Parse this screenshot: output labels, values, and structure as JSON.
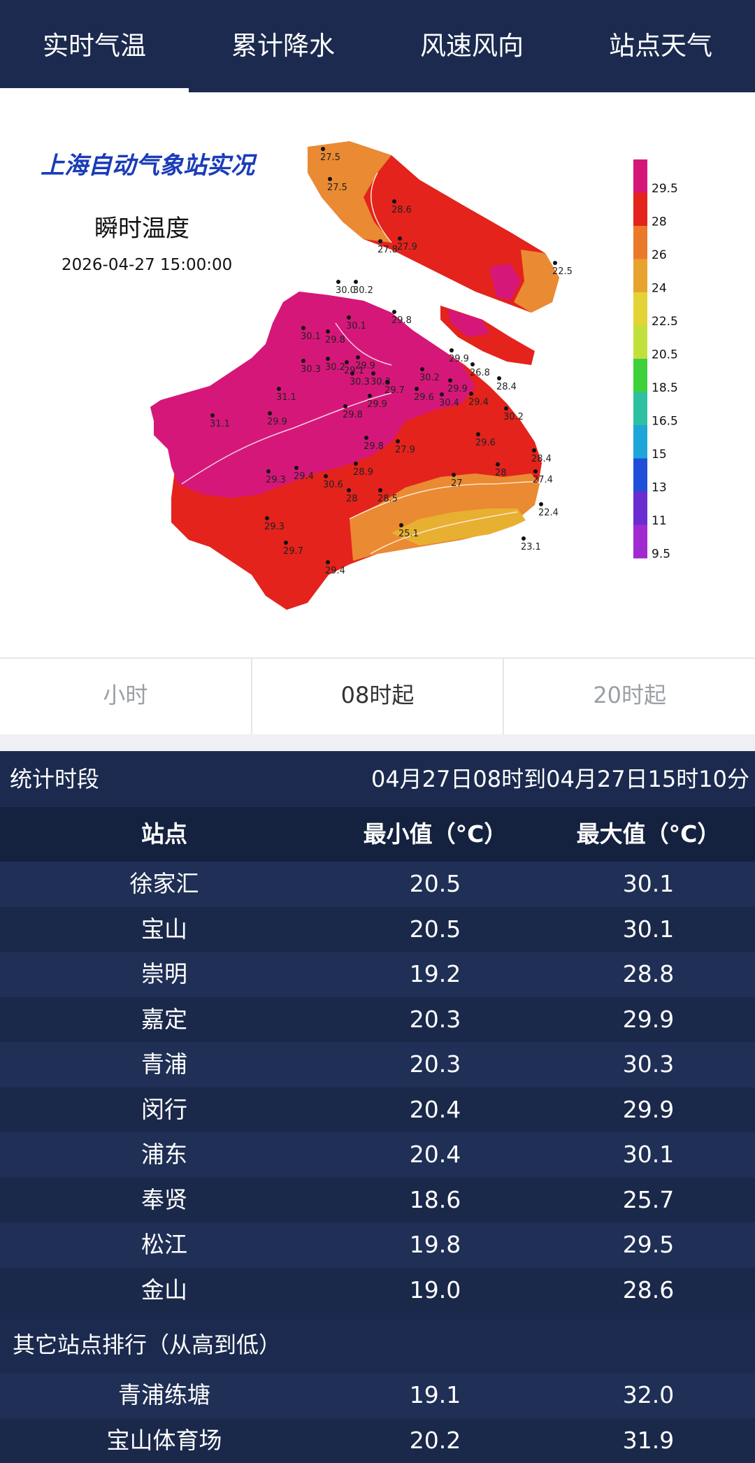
{
  "tabs": [
    {
      "label": "实时气温",
      "active": true
    },
    {
      "label": "累计降水",
      "active": false
    },
    {
      "label": "风速风向",
      "active": false
    },
    {
      "label": "站点天气",
      "active": false
    }
  ],
  "map": {
    "banner": "上海自动气象站实况",
    "title": "瞬时温度",
    "datetime": "2026-04-27 15:00:00",
    "legend_labels": [
      "29.5",
      "28",
      "26",
      "24",
      "22.5",
      "20.5",
      "18.5",
      "16.5",
      "15",
      "13",
      "11",
      "9.5"
    ],
    "legend_colors": [
      "#d6177a",
      "#e3231c",
      "#ea7a2a",
      "#e8a32e",
      "#e4d334",
      "#c2e03c",
      "#3ed13a",
      "#2ec1a1",
      "#1ea6d8",
      "#1f4fd8",
      "#6a2dd0",
      "#a12bd0"
    ],
    "station_labels": [
      "27.5",
      "27.5",
      "28.6",
      "27.8",
      "27.9",
      "22.5",
      "30.0",
      "30.2",
      "30.1",
      "29.8",
      "30.1",
      "29.8",
      "30.3",
      "30.2",
      "29.1",
      "29.9",
      "30.3",
      "30.3",
      "30.2",
      "29.9",
      "29.9",
      "29.6",
      "30.4",
      "26.8",
      "29.4",
      "28.4",
      "30.2",
      "31.1",
      "31.1",
      "29.9",
      "29.7",
      "29.9",
      "29.8",
      "29.8",
      "29.6",
      "29.3",
      "29.4",
      "30.6",
      "28.9",
      "27.9",
      "27",
      "28.4",
      "29.3",
      "28",
      "28.5",
      "25.1",
      "27.4",
      "22.4",
      "29.7",
      "29.4",
      "23.1",
      "28"
    ]
  },
  "segments": [
    {
      "label": "小时",
      "active": false
    },
    {
      "label": "08时起",
      "active": true
    },
    {
      "label": "20时起",
      "active": false
    }
  ],
  "period": {
    "label": "统计时段",
    "value": "04月27日08时到04月27日15时10分"
  },
  "table": {
    "headers": [
      "站点",
      "最小值（°C）",
      "最大值（°C）"
    ],
    "rows": [
      [
        "徐家汇",
        "20.5",
        "30.1"
      ],
      [
        "宝山",
        "20.5",
        "30.1"
      ],
      [
        "崇明",
        "19.2",
        "28.8"
      ],
      [
        "嘉定",
        "20.3",
        "29.9"
      ],
      [
        "青浦",
        "20.3",
        "30.3"
      ],
      [
        "闵行",
        "20.4",
        "29.9"
      ],
      [
        "浦东",
        "20.4",
        "30.1"
      ],
      [
        "奉贤",
        "18.6",
        "25.7"
      ],
      [
        "松江",
        "19.8",
        "29.5"
      ],
      [
        "金山",
        "19.0",
        "28.6"
      ]
    ],
    "other_title": "其它站点排行（从高到低）",
    "other_rows": [
      [
        "青浦练塘",
        "19.1",
        "32.0"
      ],
      [
        "宝山体育场",
        "20.2",
        "31.9"
      ]
    ]
  }
}
